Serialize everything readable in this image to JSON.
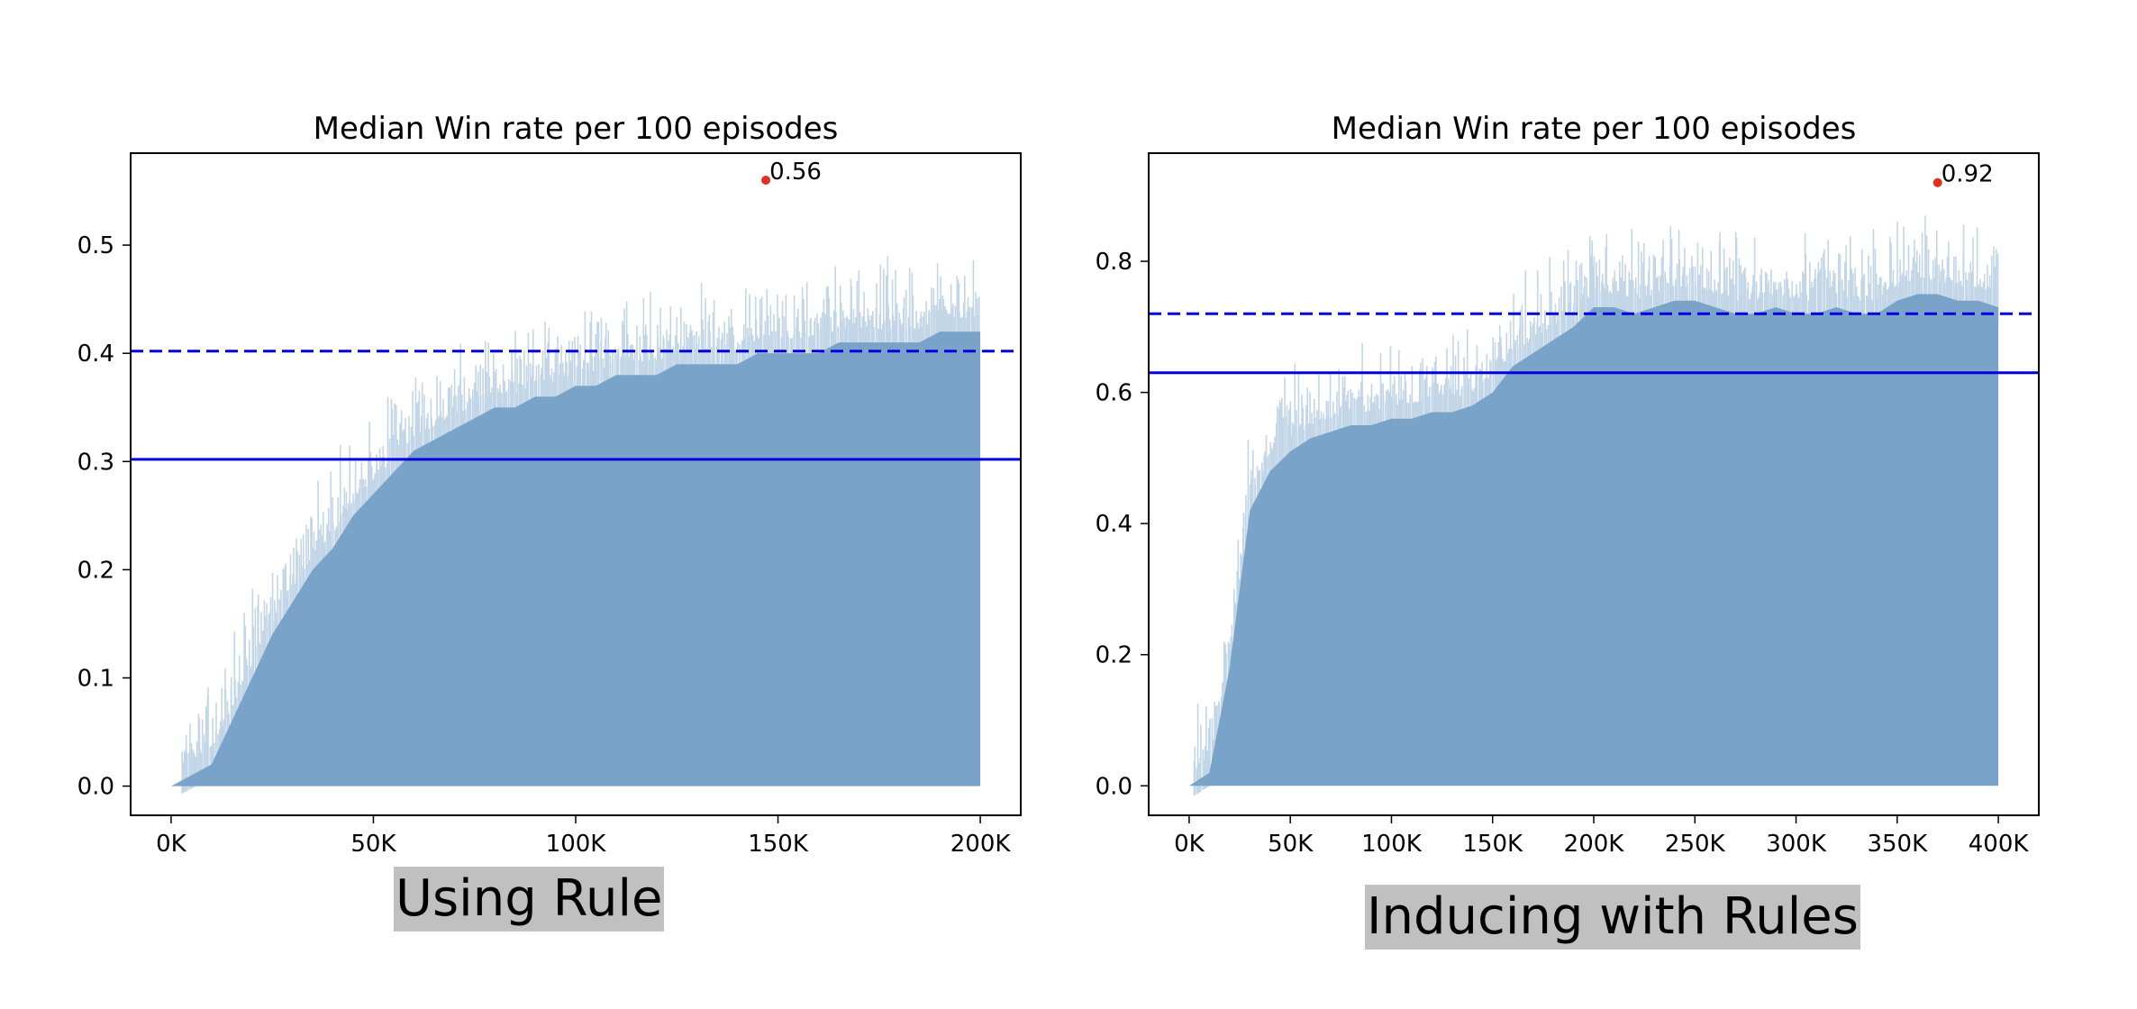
{
  "chart_data": [
    {
      "type": "area",
      "title": "Median Win rate per 100 episodes",
      "xlabel": "",
      "ylabel": "",
      "xlim": [
        -10000,
        210000
      ],
      "ylim": [
        -0.027,
        0.585
      ],
      "xticks": [
        0,
        50000,
        100000,
        150000,
        200000
      ],
      "xtick_labels": [
        "0K",
        "50K",
        "100K",
        "150K",
        "200K"
      ],
      "yticks": [
        0.0,
        0.1,
        0.2,
        0.3,
        0.4,
        0.5
      ],
      "ytick_labels": [
        "0.0",
        "0.1",
        "0.2",
        "0.3",
        "0.4",
        "0.5"
      ],
      "x": [
        0,
        5000,
        10000,
        15000,
        20000,
        25000,
        30000,
        35000,
        40000,
        45000,
        50000,
        55000,
        60000,
        65000,
        70000,
        75000,
        80000,
        85000,
        90000,
        95000,
        100000,
        105000,
        110000,
        115000,
        120000,
        125000,
        130000,
        135000,
        140000,
        145000,
        150000,
        155000,
        160000,
        165000,
        170000,
        175000,
        180000,
        185000,
        190000,
        195000,
        200000
      ],
      "y": [
        0.0,
        0.01,
        0.02,
        0.06,
        0.1,
        0.14,
        0.17,
        0.2,
        0.22,
        0.25,
        0.27,
        0.29,
        0.31,
        0.32,
        0.33,
        0.34,
        0.35,
        0.35,
        0.36,
        0.36,
        0.37,
        0.37,
        0.38,
        0.38,
        0.38,
        0.39,
        0.39,
        0.39,
        0.39,
        0.4,
        0.4,
        0.4,
        0.4,
        0.41,
        0.41,
        0.41,
        0.41,
        0.41,
        0.42,
        0.42,
        0.42
      ],
      "fill_color": "#7aa3c9",
      "hlines": [
        {
          "value": 0.402,
          "style": "dashed",
          "color": "#0000dd"
        },
        {
          "value": 0.302,
          "style": "solid",
          "color": "#0000dd"
        }
      ],
      "max_point": {
        "x": 147000,
        "y": 0.56,
        "label": "0.56",
        "color": "#e03020"
      },
      "grid": false
    },
    {
      "type": "area",
      "title": "Median Win rate per 100 episodes",
      "xlabel": "",
      "ylabel": "",
      "xlim": [
        -20000,
        420000
      ],
      "ylim": [
        -0.045,
        0.965
      ],
      "xticks": [
        0,
        50000,
        100000,
        150000,
        200000,
        250000,
        300000,
        350000,
        400000
      ],
      "xtick_labels": [
        "0K",
        "50K",
        "100K",
        "150K",
        "200K",
        "250K",
        "300K",
        "350K",
        "400K"
      ],
      "yticks": [
        0.0,
        0.2,
        0.4,
        0.6,
        0.8
      ],
      "ytick_labels": [
        "0.0",
        "0.2",
        "0.4",
        "0.6",
        "0.8"
      ],
      "x": [
        0,
        10000,
        20000,
        30000,
        40000,
        50000,
        60000,
        70000,
        80000,
        90000,
        100000,
        110000,
        120000,
        130000,
        140000,
        150000,
        160000,
        170000,
        180000,
        190000,
        200000,
        210000,
        220000,
        230000,
        240000,
        250000,
        260000,
        270000,
        280000,
        290000,
        300000,
        310000,
        320000,
        330000,
        340000,
        350000,
        360000,
        370000,
        380000,
        390000,
        400000
      ],
      "y": [
        0.0,
        0.02,
        0.18,
        0.42,
        0.48,
        0.51,
        0.53,
        0.54,
        0.55,
        0.55,
        0.56,
        0.56,
        0.57,
        0.57,
        0.58,
        0.6,
        0.64,
        0.66,
        0.68,
        0.7,
        0.73,
        0.73,
        0.72,
        0.73,
        0.74,
        0.74,
        0.73,
        0.72,
        0.72,
        0.73,
        0.72,
        0.72,
        0.73,
        0.72,
        0.72,
        0.74,
        0.75,
        0.75,
        0.74,
        0.74,
        0.73
      ],
      "fill_color": "#7aa3c9",
      "hlines": [
        {
          "value": 0.72,
          "style": "dashed",
          "color": "#0000dd"
        },
        {
          "value": 0.63,
          "style": "solid",
          "color": "#0000dd"
        }
      ],
      "max_point": {
        "x": 370000,
        "y": 0.92,
        "label": "0.92",
        "color": "#e03020"
      },
      "grid": false
    }
  ],
  "captions": {
    "left": "Using Rule",
    "right": "Inducing with Rules"
  }
}
